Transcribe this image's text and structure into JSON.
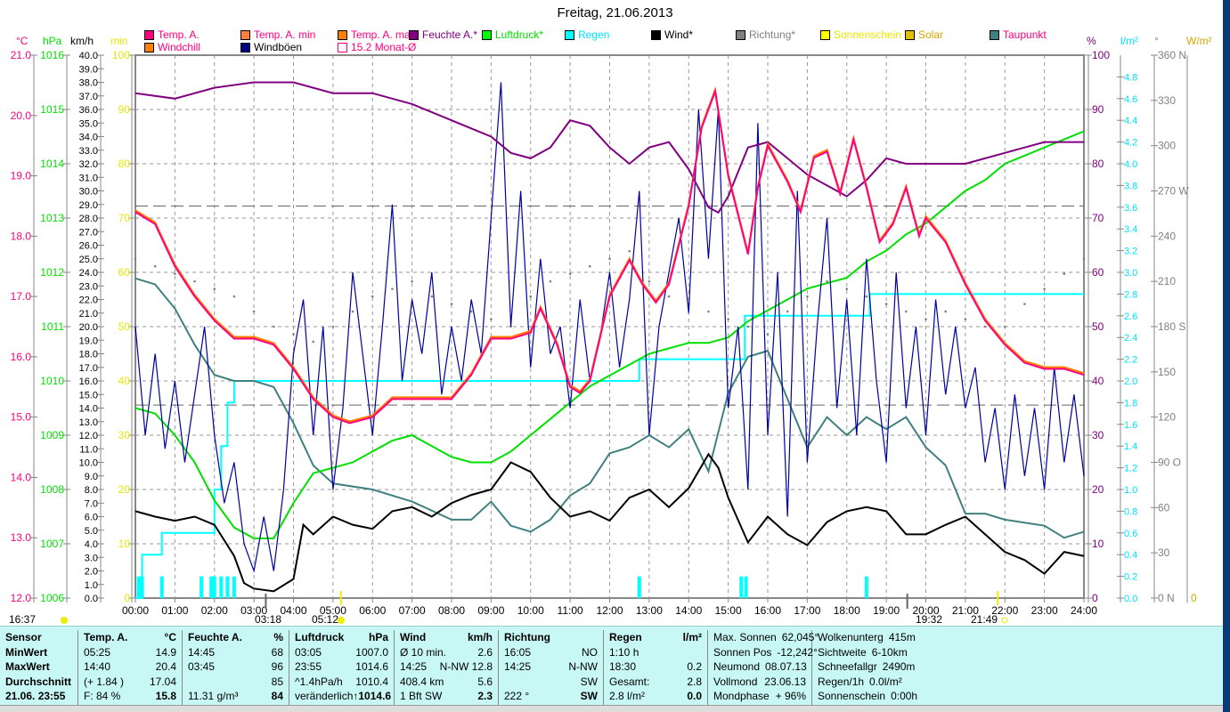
{
  "title": "Freitag, 21.06.2013",
  "legend": [
    {
      "label": "Temp. A.",
      "color": "#ff0080",
      "text": "#ff0080"
    },
    {
      "label": "Temp. A. min",
      "color": "#ff8040",
      "text": "#ff0080"
    },
    {
      "label": "Temp. A. max",
      "color": "#ff8000",
      "text": "#ff0080"
    },
    {
      "label": "Feuchte A.*",
      "color": "#800080",
      "text": "#800080"
    },
    {
      "label": "Luftdruck*",
      "color": "#00ff00",
      "text": "#00e000"
    },
    {
      "label": "Regen",
      "color": "#00ffff",
      "text": "#00e0ff"
    },
    {
      "label": "Wind*",
      "color": "#000000",
      "text": "#000000"
    },
    {
      "label": "Richtung*",
      "color": "#808080",
      "text": "#808080"
    },
    {
      "label": "Sonnenschein",
      "color": "#ffff00",
      "text": "#e8e800"
    },
    {
      "label": "Solar",
      "color": "#e0c000",
      "text": "#d0a800"
    },
    {
      "label": "Taupunkt",
      "color": "#408080",
      "text": "#ff0080"
    },
    {
      "label": "Windchill",
      "color": "#ff8000",
      "text": "#ff0080"
    },
    {
      "label": "Windböen",
      "color": "#000080",
      "text": "#000000"
    },
    {
      "label": "15.2 Monat-Ø",
      "color": "#ff0080",
      "text": "#ff0080"
    }
  ],
  "units": {
    "temp": "°C",
    "press": "hPa",
    "wind": "km/h",
    "min": "min",
    "hum": "%",
    "rain": "l/m²",
    "dir": "°",
    "solar": "W/m²"
  },
  "sun": {
    "left": "16:37",
    "moonset": "03:18",
    "sunrise": "05:12",
    "moonrise": "19:32",
    "sunset": "21:49"
  },
  "chart_data": {
    "type": "line",
    "title": "Freitag, 21.06.2013",
    "x_ticks": [
      "00:00",
      "01:00",
      "02:00",
      "03:00",
      "04:00",
      "05:00",
      "06:00",
      "07:00",
      "08:00",
      "09:00",
      "10:00",
      "11:00",
      "12:00",
      "13:00",
      "14:00",
      "15:00",
      "16:00",
      "17:00",
      "18:00",
      "19:00",
      "20:00",
      "21:00",
      "22:00",
      "23:00",
      "24:00"
    ],
    "xlim": [
      0,
      24
    ],
    "axes": {
      "temp": {
        "min": 12,
        "max": 21,
        "step": 1,
        "dec": 1,
        "color": "#ff0080"
      },
      "press": {
        "min": 1006,
        "max": 1016,
        "step": 1,
        "dec": 0,
        "color": "#00e000"
      },
      "wind": {
        "min": 0,
        "max": 40,
        "step": 1,
        "dec": 1,
        "color": "#000000"
      },
      "min": {
        "min": 0,
        "max": 100,
        "step": 10,
        "dec": 0,
        "color": "#e8e800"
      },
      "hum": {
        "min": 0,
        "max": 100,
        "step": 10,
        "dec": 0,
        "color": "#800080"
      },
      "rain": {
        "min": 0,
        "max": 5,
        "step": 0.2,
        "dec": 1,
        "color": "#00e0ff",
        "label_max": 4.8
      },
      "dir": {
        "min": 0,
        "max": 360,
        "step": 30,
        "dec": 0,
        "color": "#808080",
        "names": {
          "0": "N",
          "90": "O",
          "180": "S",
          "270": "W",
          "360": "N"
        }
      },
      "solar": {
        "min": 0,
        "max": 0,
        "color": "#d0a800"
      }
    },
    "ref_lines": [
      {
        "axis": "temp",
        "value": 15.2,
        "label": "15.2 Monat-Ø"
      },
      {
        "axis": "temp",
        "value": 18.5
      }
    ],
    "series": [
      {
        "name": "Temp. A.",
        "axis": "temp",
        "color": "#ff0080",
        "x": [
          0,
          0.5,
          1,
          1.5,
          2,
          2.5,
          3,
          3.5,
          4,
          4.5,
          5,
          5.42,
          6,
          6.5,
          7,
          7.5,
          8,
          8.5,
          9,
          9.5,
          10,
          10.25,
          10.67,
          11,
          11.25,
          11.5,
          12,
          12.5,
          12.83,
          13.17,
          13.5,
          14,
          14.33,
          14.67,
          15,
          15.5,
          15.75,
          16,
          16.5,
          16.83,
          17.17,
          17.5,
          17.83,
          18.17,
          18.5,
          18.83,
          19.17,
          19.5,
          19.83,
          20,
          20.5,
          21,
          21.5,
          22,
          22.5,
          23,
          23.5,
          24
        ],
        "y": [
          18.4,
          18.2,
          17.5,
          17.0,
          16.6,
          16.3,
          16.3,
          16.2,
          15.8,
          15.3,
          15.0,
          14.9,
          15.0,
          15.3,
          15.3,
          15.3,
          15.3,
          15.7,
          16.3,
          16.3,
          16.4,
          16.8,
          16.2,
          15.5,
          15.4,
          15.6,
          17.0,
          17.6,
          17.2,
          16.9,
          17.2,
          18.5,
          19.8,
          20.4,
          19.0,
          17.7,
          18.8,
          19.5,
          18.9,
          18.4,
          19.3,
          19.4,
          18.7,
          19.6,
          18.8,
          17.9,
          18.2,
          18.8,
          18.0,
          18.3,
          17.9,
          17.2,
          16.6,
          16.2,
          15.9,
          15.8,
          15.8,
          15.7
        ]
      },
      {
        "name": "Feuchte A.*",
        "axis": "hum",
        "color": "#800080",
        "x": [
          0,
          1,
          2,
          3,
          4,
          5,
          6,
          7,
          8,
          9,
          9.5,
          10,
          10.5,
          11,
          11.5,
          12,
          12.5,
          13,
          13.5,
          14,
          14.5,
          14.75,
          15,
          15.5,
          16,
          16.5,
          17,
          17.5,
          18,
          18.5,
          19,
          19.5,
          20,
          21,
          21.5,
          22,
          23,
          24
        ],
        "y": [
          93,
          92,
          94,
          95,
          95,
          93,
          93,
          91,
          88,
          85,
          82,
          81,
          83,
          88,
          87,
          83,
          80,
          83,
          84,
          79,
          72,
          71,
          74,
          83,
          84,
          81,
          78,
          76,
          74,
          77,
          81,
          80,
          80,
          80,
          81,
          82,
          84,
          84
        ]
      },
      {
        "name": "Luftdruck*",
        "axis": "press",
        "color": "#00e000",
        "x": [
          0,
          0.5,
          1,
          1.5,
          2,
          2.5,
          3,
          3.5,
          4,
          4.5,
          5,
          5.5,
          6,
          6.5,
          7,
          7.5,
          8,
          8.5,
          9,
          9.5,
          10,
          10.5,
          11,
          11.5,
          12,
          12.5,
          13,
          13.5,
          14,
          14.5,
          15,
          15.5,
          16,
          16.5,
          17,
          17.5,
          18,
          18.5,
          19,
          19.5,
          20,
          20.5,
          21,
          21.5,
          22,
          23,
          24
        ],
        "y": [
          1009.5,
          1009.4,
          1009.0,
          1008.5,
          1007.8,
          1007.3,
          1007.1,
          1007.1,
          1007.75,
          1008.3,
          1008.4,
          1008.5,
          1008.7,
          1008.9,
          1009.0,
          1008.8,
          1008.6,
          1008.5,
          1008.5,
          1008.7,
          1009.0,
          1009.3,
          1009.6,
          1009.9,
          1010.1,
          1010.3,
          1010.5,
          1010.6,
          1010.7,
          1010.7,
          1010.8,
          1011.1,
          1011.3,
          1011.5,
          1011.7,
          1011.8,
          1011.9,
          1012.2,
          1012.4,
          1012.7,
          1012.9,
          1013.2,
          1013.5,
          1013.7,
          1014.0,
          1014.3,
          1014.6
        ]
      },
      {
        "name": "Regen",
        "axis": "rain",
        "color": "#00ffff",
        "step": true,
        "x": [
          0,
          0.17,
          0.67,
          1.67,
          2.0,
          2.17,
          2.33,
          2.5,
          12.75,
          15.42,
          18.58,
          24
        ],
        "y": [
          0,
          0.4,
          0.6,
          0.6,
          1.0,
          1.4,
          1.8,
          2.0,
          2.2,
          2.6,
          2.8,
          2.8
        ]
      },
      {
        "name": "Taupunkt",
        "axis": "temp",
        "color": "#408080",
        "x": [
          0,
          0.5,
          1,
          1.5,
          2,
          2.5,
          3,
          3.5,
          4,
          4.5,
          5,
          6,
          7,
          8,
          8.5,
          9,
          9.5,
          10,
          10.5,
          11,
          11.5,
          12,
          12.5,
          13,
          13.5,
          14,
          14.5,
          15,
          15.5,
          16,
          16.5,
          17,
          17.5,
          18,
          18.5,
          19,
          19.5,
          20,
          20.5,
          21,
          21.5,
          22,
          23,
          23.5,
          24
        ],
        "y": [
          17.3,
          17.2,
          16.8,
          16.2,
          15.7,
          15.6,
          15.6,
          15.5,
          14.9,
          14.2,
          13.9,
          13.8,
          13.6,
          13.3,
          13.3,
          13.6,
          13.2,
          13.1,
          13.3,
          13.7,
          13.9,
          14.4,
          14.5,
          14.7,
          14.5,
          14.8,
          14.1,
          15.4,
          16.0,
          16.1,
          15.3,
          14.5,
          15.0,
          14.7,
          15.0,
          14.8,
          15.0,
          14.5,
          14.2,
          13.4,
          13.4,
          13.3,
          13.2,
          13.0,
          13.1
        ]
      },
      {
        "name": "Wind*",
        "axis": "wind",
        "color": "#000000",
        "x": [
          0,
          0.5,
          1,
          1.5,
          2,
          2.5,
          2.75,
          3,
          3.5,
          4,
          4.25,
          4.5,
          5,
          5.5,
          6,
          6.5,
          7,
          7.5,
          8,
          8.5,
          9,
          9.5,
          10,
          10.5,
          11,
          11.5,
          12,
          12.5,
          13,
          13.5,
          14,
          14.5,
          14.75,
          15,
          15.5,
          16,
          16.5,
          17,
          17.5,
          18,
          18.5,
          19,
          19.5,
          20,
          20.5,
          21,
          21.5,
          22,
          22.5,
          23,
          23.5,
          24
        ],
        "y": [
          6.4,
          6.0,
          5.7,
          6.0,
          5.4,
          3.1,
          1.1,
          0.7,
          0.5,
          1.4,
          5.4,
          4.7,
          6.0,
          5.4,
          5.1,
          6.4,
          6.7,
          6.0,
          7.0,
          7.6,
          8.0,
          10.0,
          9.3,
          7.4,
          6.0,
          6.4,
          5.7,
          7.4,
          8.0,
          6.7,
          8.1,
          10.6,
          9.6,
          7.4,
          4.1,
          6.0,
          4.7,
          3.9,
          5.6,
          6.4,
          6.7,
          6.4,
          4.7,
          4.7,
          5.4,
          6.0,
          4.7,
          3.4,
          2.8,
          1.8,
          3.4,
          3.1
        ]
      },
      {
        "name": "Windböen",
        "axis": "wind",
        "color": "#0000a0",
        "x_start": 0,
        "x_step": 0.25,
        "y": [
          20,
          12,
          18,
          11,
          16,
          10,
          15,
          20,
          12,
          7,
          10,
          4,
          2,
          6,
          2,
          8,
          18,
          22,
          12,
          20,
          8,
          14,
          24,
          18,
          12,
          20,
          29,
          16,
          22,
          18,
          24,
          15,
          20,
          16,
          22,
          18,
          28,
          38,
          20,
          30,
          17,
          25,
          18,
          20,
          14,
          22,
          16,
          19,
          24,
          17,
          22,
          30,
          12,
          20,
          24,
          28,
          21,
          36,
          25,
          36,
          14,
          20,
          8,
          35,
          12,
          24,
          6,
          30,
          10,
          20,
          28,
          14,
          22,
          12,
          25,
          16,
          10,
          24,
          14,
          20,
          12,
          22,
          15,
          20,
          14,
          17,
          10,
          14,
          8,
          15,
          9,
          14,
          8,
          17,
          10,
          15,
          9
        ]
      },
      {
        "name": "Richtung*",
        "axis": "dir",
        "color": "#808080",
        "type": "scatter",
        "x_start": 0,
        "x_step": 0.5,
        "y": [
          225,
          220,
          215,
          210,
          205,
          200,
          190,
          180,
          175,
          170,
          180,
          190,
          200,
          205,
          210,
          200,
          195,
          190,
          185,
          180,
          200,
          210,
          215,
          220,
          225,
          230,
          210,
          200,
          195,
          190,
          185,
          180,
          175,
          190,
          200,
          210,
          205,
          200,
          195,
          190,
          185,
          190,
          185,
          180,
          180,
          195,
          205,
          215,
          225
        ]
      }
    ],
    "rain_bars": {
      "axis": "rain",
      "color": "#00ffff",
      "x": [
        0.08,
        0.17,
        0.67,
        1.67,
        1.92,
        2.0,
        2.17,
        2.33,
        2.5,
        12.75,
        15.33,
        15.45,
        18.5
      ],
      "y": [
        0.2,
        0.2,
        0.2,
        0.2,
        0.2,
        0.2,
        0.2,
        0.2,
        0.2,
        0.2,
        0.2,
        0.2,
        0.2
      ]
    }
  },
  "table": {
    "columns": [
      {
        "rows": [
          [
            "Sensor",
            ""
          ],
          [
            "MinWert",
            ""
          ],
          [
            "MaxWert",
            ""
          ],
          [
            "Durchschnitt",
            ""
          ],
          [
            "21.06. 23:55",
            ""
          ]
        ],
        "bold": [
          0,
          1,
          2,
          3,
          4
        ]
      },
      {
        "rows": [
          [
            "Temp. A.",
            "°C"
          ],
          [
            "05:25",
            "14.9"
          ],
          [
            "14:40",
            "20.4"
          ],
          [
            "(+ 1.84 )",
            "17.04"
          ],
          [
            "F: 84 %",
            "15.8"
          ]
        ],
        "bold": [
          0
        ]
      },
      {
        "rows": [
          [
            "Feuchte A.",
            "%"
          ],
          [
            "14:45",
            "68"
          ],
          [
            "03:45",
            "96"
          ],
          [
            "",
            "85"
          ],
          [
            "11.31 g/m³",
            "84"
          ]
        ],
        "bold": [
          0
        ]
      },
      {
        "rows": [
          [
            "Luftdruck",
            "hPa"
          ],
          [
            "03:05",
            "1007.0"
          ],
          [
            "23:55",
            "1014.6"
          ],
          [
            "^1.4hPa/h",
            "1010.4"
          ],
          [
            "veränderlich",
            "↑1014.6"
          ]
        ],
        "bold": [
          0
        ]
      },
      {
        "rows": [
          [
            "Wind",
            "km/h"
          ],
          [
            "Ø 10 min.",
            "2.6"
          ],
          [
            "14:25",
            "N-NW 12.8"
          ],
          [
            "408.4 km",
            "5.6"
          ],
          [
            "1 Bft SW",
            "2.3"
          ]
        ],
        "bold": [
          0
        ]
      },
      {
        "rows": [
          [
            "Richtung",
            ""
          ],
          [
            "16:05",
            "NO"
          ],
          [
            "14:25",
            "N-NW"
          ],
          [
            "",
            "SW"
          ],
          [
            "222 °",
            "SW"
          ]
        ],
        "bold": [
          0
        ]
      },
      {
        "rows": [
          [
            "Regen",
            "l/m²"
          ],
          [
            "1:10 h",
            ""
          ],
          [
            "18:30",
            "0.2"
          ],
          [
            "Gesamt:",
            "2.8"
          ],
          [
            "2.8 l/m²",
            "0.0"
          ]
        ],
        "bold": [
          0
        ]
      },
      {
        "rows": [
          [
            "Max. Sonnen",
            "62,045°"
          ],
          [
            "Sonnen Pos",
            "-12,242°"
          ],
          [
            "Neumond",
            "08.07.13"
          ],
          [
            "Vollmond",
            "23.06.13"
          ],
          [
            "Mondphase",
            "+ 96%"
          ]
        ],
        "bold": []
      },
      {
        "rows": [
          [
            "Wolkenunterg",
            "415m"
          ],
          [
            "Sichtweite",
            "6-10km"
          ],
          [
            "Schneefallgr",
            "2490m"
          ],
          [
            "Regen/1h",
            "0.0l/m²"
          ],
          [
            "Sonnenschein",
            "0:00h"
          ]
        ],
        "bold": []
      }
    ]
  }
}
